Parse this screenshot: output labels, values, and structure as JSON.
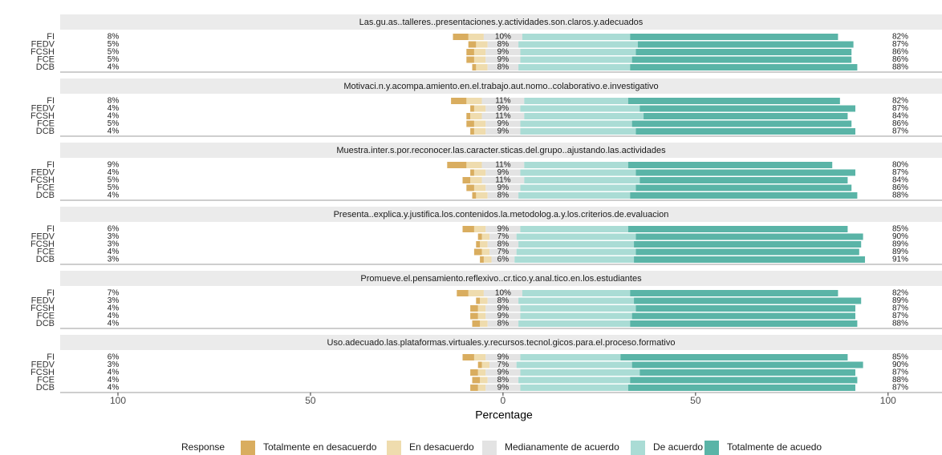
{
  "chart_data": {
    "type": "diverging_bar",
    "x_label": "Percentage",
    "xlim": [
      -115,
      114
    ],
    "xticks": [
      {
        "value": -100,
        "label": "100"
      },
      {
        "value": -50,
        "label": "50"
      },
      0,
      50,
      100
    ],
    "grid": false,
    "legend": {
      "title": "Response",
      "position": "bottom"
    },
    "series": [
      {
        "name": "Totalmente en desacuerdo",
        "color": "#d9ad5f"
      },
      {
        "name": "En desacuerdo",
        "color": "#efdcae"
      },
      {
        "name": "Medianamente de acuerdo",
        "color": "#e3e3e3"
      },
      {
        "name": "De acuerdo",
        "color": "#aadcd5"
      },
      {
        "name": "Totalmente de acuedo",
        "color": "#5ab4a7"
      }
    ],
    "facets": [
      {
        "title": "Las.gu.as..talleres..presentaciones.y.actividades.son.claros.y.adecuados",
        "categories": [
          "FI",
          "FEDV",
          "FCSH",
          "FCE",
          "DCB"
        ],
        "series": [
          {
            "values": [
              4,
              2,
              2,
              2,
              1
            ]
          },
          {
            "values": [
              4,
              3,
              3,
              3,
              3
            ]
          },
          {
            "values": [
              10,
              8,
              9,
              9,
              8
            ],
            "value_labels": [
              "10%",
              "8%",
              "9%",
              "9%",
              "8%"
            ]
          },
          {
            "values": [
              28,
              31,
              30,
              29,
              29
            ]
          },
          {
            "values": [
              54,
              56,
              56,
              57,
              59
            ]
          }
        ],
        "low": {
          "values": [
            8,
            5,
            5,
            5,
            4
          ],
          "value_labels": [
            "8%",
            "5%",
            "5%",
            "5%",
            "4%"
          ]
        },
        "high": {
          "values": [
            82,
            87,
            86,
            86,
            88
          ],
          "value_labels": [
            "82%",
            "87%",
            "86%",
            "86%",
            "88%"
          ]
        }
      },
      {
        "title": "Motivaci.n.y.acompa.amiento.en.el.trabajo.aut.nomo..colaborativo.e.investigativo",
        "categories": [
          "FI",
          "FEDV",
          "FCSH",
          "FCE",
          "DCB"
        ],
        "series": [
          {
            "values": [
              4,
              1,
              1,
              2,
              1
            ]
          },
          {
            "values": [
              4,
              3,
              3,
              3,
              3
            ]
          },
          {
            "values": [
              11,
              9,
              11,
              9,
              9
            ],
            "value_labels": [
              "11%",
              "9%",
              "11%",
              "9%",
              "9%"
            ]
          },
          {
            "values": [
              27,
              31,
              31,
              29,
              30
            ]
          },
          {
            "values": [
              55,
              56,
              53,
              57,
              57
            ]
          }
        ],
        "low": {
          "values": [
            8,
            4,
            4,
            5,
            4
          ],
          "value_labels": [
            "8%",
            "4%",
            "4%",
            "5%",
            "4%"
          ]
        },
        "high": {
          "values": [
            82,
            87,
            84,
            86,
            87
          ],
          "value_labels": [
            "82%",
            "87%",
            "84%",
            "86%",
            "87%"
          ]
        }
      },
      {
        "title": "Muestra.inter.s.por.reconocer.las.caracter.sticas.del.grupo..ajustando.las.actividades",
        "categories": [
          "FI",
          "FEDV",
          "FCSH",
          "FCE",
          "DCB"
        ],
        "series": [
          {
            "values": [
              5,
              1,
              2,
              2,
              1
            ]
          },
          {
            "values": [
              4,
              3,
              3,
              3,
              3
            ]
          },
          {
            "values": [
              11,
              9,
              11,
              9,
              8
            ],
            "value_labels": [
              "11%",
              "9%",
              "11%",
              "9%",
              "8%"
            ]
          },
          {
            "values": [
              27,
              30,
              30,
              30,
              29
            ]
          },
          {
            "values": [
              53,
              57,
              54,
              56,
              59
            ]
          }
        ],
        "low": {
          "values": [
            9,
            4,
            5,
            5,
            4
          ],
          "value_labels": [
            "9%",
            "4%",
            "5%",
            "5%",
            "4%"
          ]
        },
        "high": {
          "values": [
            80,
            87,
            84,
            86,
            88
          ],
          "value_labels": [
            "80%",
            "87%",
            "84%",
            "86%",
            "88%"
          ]
        }
      },
      {
        "title": "Presenta..explica.y.justifica.los.contenidos.la.metodolog.a.y.los.criterios.de.evaluacion",
        "categories": [
          "FI",
          "FEDV",
          "FCSH",
          "FCE",
          "DCB"
        ],
        "series": [
          {
            "values": [
              3,
              1,
              1,
              2,
              1
            ]
          },
          {
            "values": [
              3,
              2,
              2,
              2,
              2
            ]
          },
          {
            "values": [
              9,
              7,
              8,
              7,
              6
            ],
            "value_labels": [
              "9%",
              "7%",
              "8%",
              "7%",
              "6%"
            ]
          },
          {
            "values": [
              28,
              31,
              30,
              31,
              31
            ]
          },
          {
            "values": [
              57,
              59,
              59,
              58,
              60
            ]
          }
        ],
        "low": {
          "values": [
            6,
            3,
            3,
            4,
            3
          ],
          "value_labels": [
            "6%",
            "3%",
            "3%",
            "4%",
            "3%"
          ]
        },
        "high": {
          "values": [
            85,
            90,
            89,
            89,
            91
          ],
          "value_labels": [
            "85%",
            "90%",
            "89%",
            "89%",
            "91%"
          ]
        }
      },
      {
        "title": "Promueve.el.pensamiento.reflexivo..cr.tico.y.anal.tico.en.los.estudiantes",
        "categories": [
          "FI",
          "FEDV",
          "FCSH",
          "FCE",
          "DCB"
        ],
        "series": [
          {
            "values": [
              3,
              1,
              2,
              2,
              2
            ]
          },
          {
            "values": [
              4,
              2,
              2,
              2,
              2
            ]
          },
          {
            "values": [
              10,
              8,
              9,
              9,
              8
            ],
            "value_labels": [
              "10%",
              "8%",
              "9%",
              "9%",
              "8%"
            ]
          },
          {
            "values": [
              28,
              30,
              30,
              29,
              29
            ]
          },
          {
            "values": [
              54,
              59,
              57,
              58,
              59
            ]
          }
        ],
        "low": {
          "values": [
            7,
            3,
            4,
            4,
            4
          ],
          "value_labels": [
            "7%",
            "3%",
            "4%",
            "4%",
            "4%"
          ]
        },
        "high": {
          "values": [
            82,
            89,
            87,
            87,
            88
          ],
          "value_labels": [
            "82%",
            "89%",
            "87%",
            "87%",
            "88%"
          ]
        }
      },
      {
        "title": "Uso.adecuado.las.plataformas.virtuales.y.recursos.tecnol.gicos.para.el.proceso.formativo",
        "categories": [
          "FI",
          "FEDV",
          "FCSH",
          "FCE",
          "DCB"
        ],
        "series": [
          {
            "values": [
              3,
              1,
              2,
              2,
              2
            ]
          },
          {
            "values": [
              3,
              2,
              2,
              2,
              2
            ]
          },
          {
            "values": [
              9,
              7,
              9,
              8,
              9
            ],
            "value_labels": [
              "9%",
              "7%",
              "9%",
              "8%",
              "9%"
            ]
          },
          {
            "values": [
              26,
              30,
              31,
              29,
              28
            ]
          },
          {
            "values": [
              59,
              60,
              56,
              59,
              59
            ]
          }
        ],
        "low": {
          "values": [
            6,
            3,
            4,
            4,
            4
          ],
          "value_labels": [
            "6%",
            "3%",
            "4%",
            "4%",
            "4%"
          ]
        },
        "high": {
          "values": [
            85,
            90,
            87,
            88,
            87
          ],
          "value_labels": [
            "85%",
            "90%",
            "87%",
            "88%",
            "87%"
          ]
        }
      }
    ]
  }
}
